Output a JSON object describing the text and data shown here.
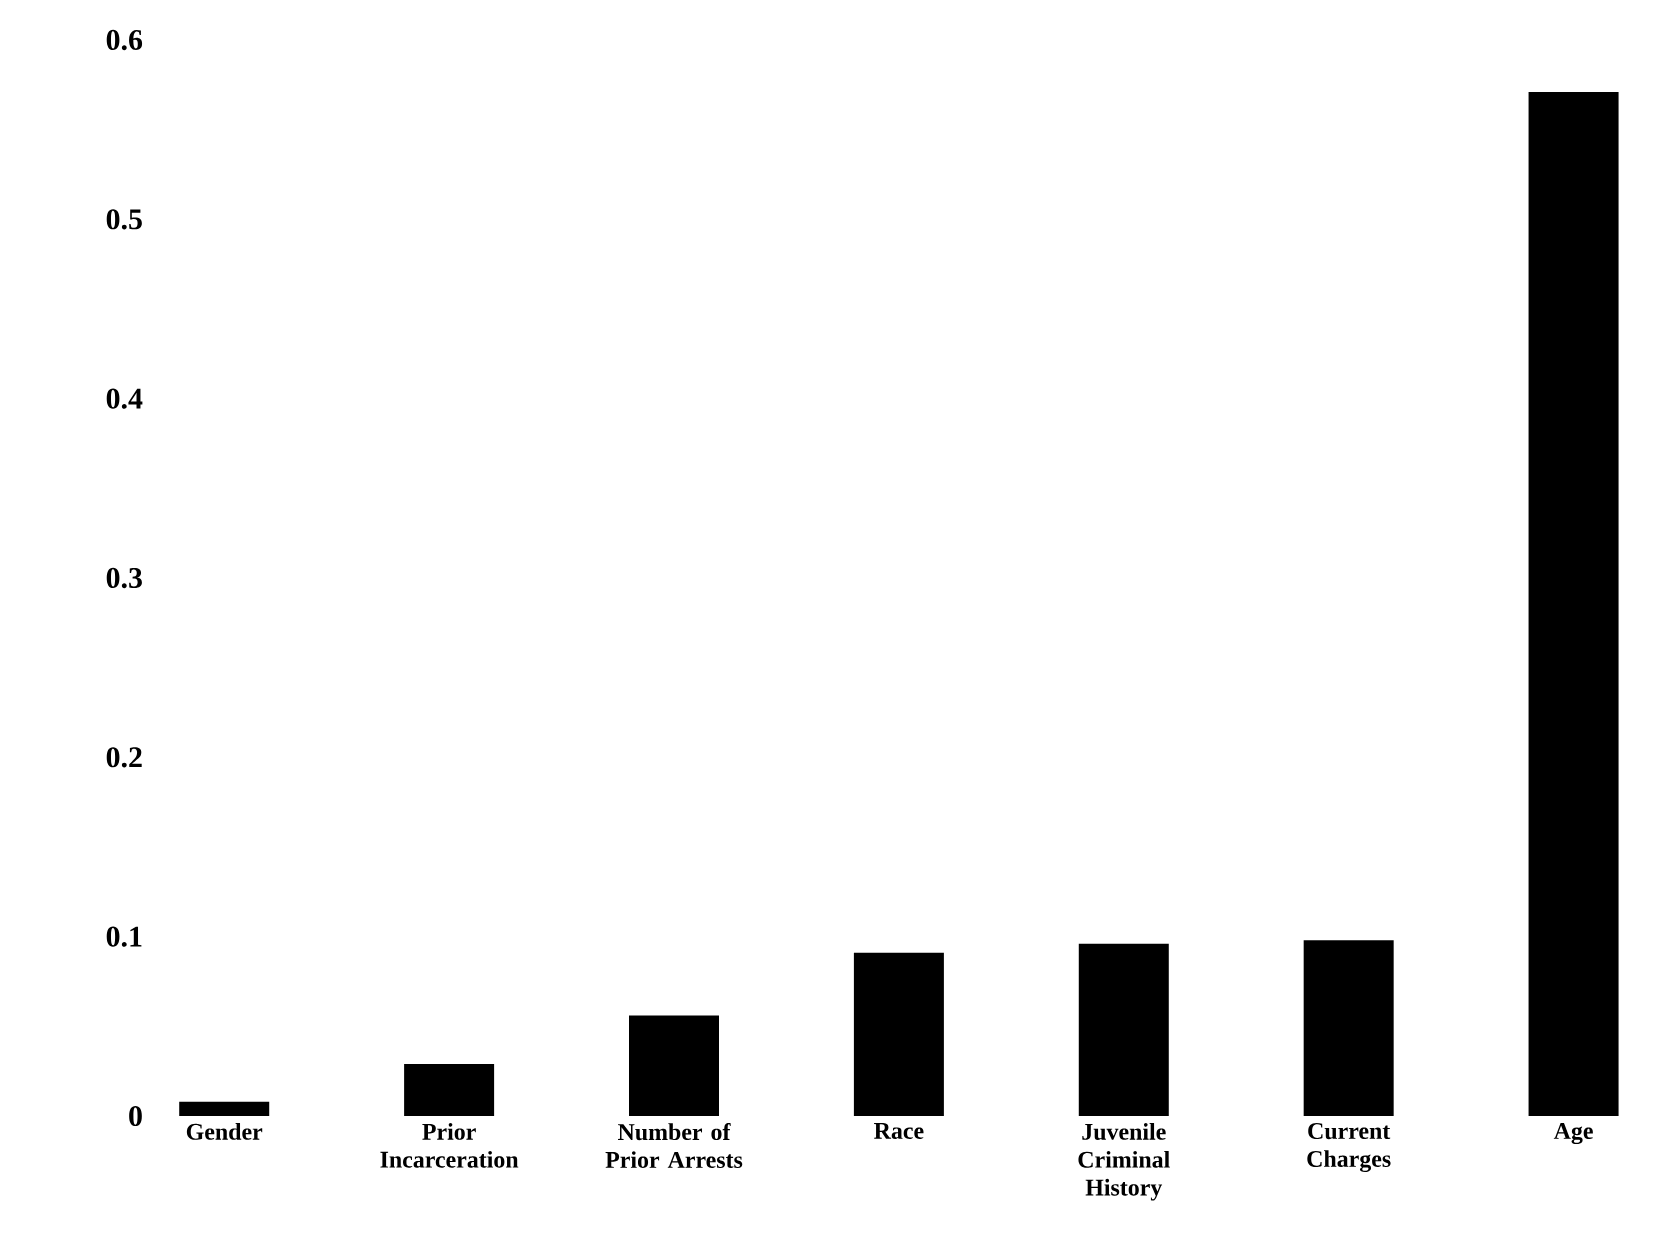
{
  "chart_data": {
    "type": "bar",
    "categories": [
      "Gender",
      "Prior Incarceration",
      "Number of Prior Arrests",
      "Race",
      "Juvenile Criminal History",
      "Current Charges",
      "Age"
    ],
    "values": [
      0.008,
      0.029,
      0.056,
      0.091,
      0.096,
      0.098,
      0.571
    ],
    "color": "#000000",
    "ylim": [
      0,
      0.6
    ],
    "yticks": [
      0,
      0.1,
      0.2,
      0.3,
      0.4,
      0.5,
      0.6
    ],
    "grid": false
  }
}
